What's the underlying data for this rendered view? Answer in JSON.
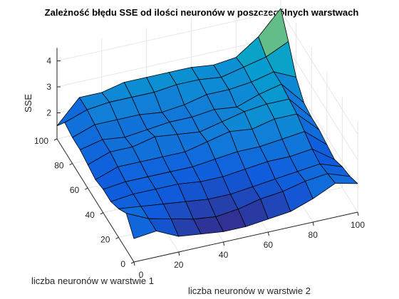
{
  "chart_data": {
    "type": "surface",
    "title": "Zależność błędu SSE od ilości neuronów w poszczególnych warstwach",
    "xlabel": "liczba neuronów w warstwie 1",
    "ylabel": "liczba neuronów w warstwie 2",
    "zlabel": "SSE",
    "x": [
      0,
      10,
      20,
      30,
      40,
      50,
      60,
      70,
      80,
      90,
      100
    ],
    "y": [
      0,
      10,
      20,
      30,
      40,
      50,
      60,
      70,
      80,
      90,
      100
    ],
    "xlim": [
      0,
      100
    ],
    "ylim": [
      0,
      100
    ],
    "zlim": [
      1,
      4.5
    ],
    "x_ticks": [
      "0",
      "20",
      "40",
      "60",
      "80",
      "100"
    ],
    "y_ticks": [
      "0",
      "20",
      "40",
      "60",
      "80",
      "100"
    ],
    "z_ticks": [
      "2",
      "3",
      "4"
    ],
    "z": [
      [
        1.9,
        2.0,
        1.6,
        1.5,
        1.4,
        1.4,
        1.5,
        1.6,
        1.9,
        2.3,
        2.1
      ],
      [
        2.4,
        2.0,
        1.8,
        1.6,
        1.5,
        1.6,
        1.8,
        1.9,
        2.1,
        2.2,
        1.9
      ],
      [
        2.1,
        2.0,
        1.9,
        1.8,
        1.7,
        1.7,
        1.8,
        1.9,
        2.0,
        2.1,
        1.8
      ],
      [
        1.9,
        2.0,
        2.0,
        2.0,
        1.9,
        1.9,
        2.0,
        2.1,
        2.1,
        2.2,
        1.6
      ],
      [
        1.9,
        2.0,
        2.0,
        2.0,
        2.0,
        2.1,
        2.2,
        2.2,
        2.3,
        2.4,
        1.7
      ],
      [
        1.8,
        2.1,
        2.1,
        2.1,
        2.1,
        2.3,
        2.5,
        2.4,
        2.6,
        2.6,
        1.8
      ],
      [
        1.9,
        2.2,
        2.2,
        2.4,
        2.3,
        2.2,
        2.4,
        2.6,
        2.7,
        2.7,
        1.8
      ],
      [
        2.0,
        2.2,
        2.1,
        2.2,
        2.3,
        2.3,
        2.4,
        2.3,
        2.6,
        2.8,
        1.9
      ],
      [
        2.0,
        2.3,
        2.3,
        2.3,
        2.2,
        2.3,
        2.5,
        2.5,
        2.6,
        2.8,
        2.4
      ],
      [
        2.1,
        2.4,
        2.5,
        2.5,
        2.5,
        2.6,
        2.6,
        2.5,
        2.7,
        2.9,
        3.3
      ],
      [
        1.5,
        2.4,
        2.4,
        2.6,
        2.6,
        2.6,
        2.6,
        2.5,
        2.6,
        3.2,
        4.1
      ]
    ],
    "colormap": "parula",
    "grid": true
  }
}
